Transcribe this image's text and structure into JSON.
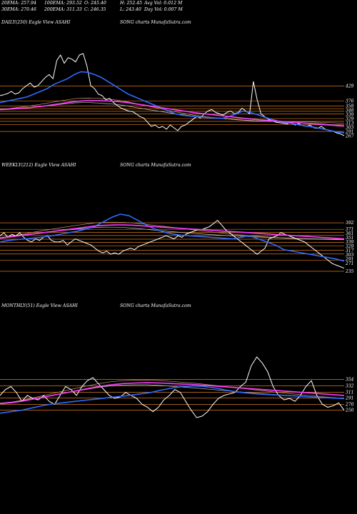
{
  "header": {
    "row1": [
      "20EMA: 257.94",
      "100EMA: 293.52",
      "O: 245.40",
      "H: 252.45",
      "Avg Vol: 0.012  M"
    ],
    "row2": [
      "30EMA: 270.46",
      "200EMA: 311.33",
      "C: 246.35",
      "L: 243.40",
      "Day Vol: 0.007  M"
    ]
  },
  "panels": [
    {
      "label": "DAILY(250) Eagle  View  ASAHI",
      "credit": "SONG charts MunafaSutra.com"
    },
    {
      "label": "WEEKLY(212) Eagle  View  ASAHI",
      "credit": "SONG charts MunafaSutra.com"
    },
    {
      "label": "MONTHLY(51) Eagle  View  ASAHI",
      "credit": "SONG charts MunafaSutra.com"
    }
  ],
  "colors": {
    "price": "#ffffff",
    "fast_ema": "#2f6bff",
    "slow_ema": "#ff3cff",
    "level": "#e07a1e",
    "ema_gray": "#c8c8c8",
    "ema_brown": "#c89a6a"
  },
  "chart_data": [
    {
      "type": "line",
      "name": "daily",
      "levels": [
        "429",
        "376",
        "358",
        "348",
        "339",
        "329",
        "313",
        "303",
        "291",
        "267"
      ],
      "series": [
        {
          "role": "price",
          "values": [
            395,
            398,
            402,
            410,
            400,
            405,
            420,
            430,
            440,
            425,
            430,
            445,
            460,
            470,
            455,
            520,
            540,
            510,
            530,
            525,
            515,
            540,
            545,
            500,
            430,
            420,
            400,
            395,
            380,
            385,
            370,
            360,
            350,
            345,
            340,
            338,
            330,
            320,
            315,
            300,
            285,
            290,
            280,
            285,
            275,
            290,
            280,
            270,
            285,
            290,
            300,
            310,
            320,
            315,
            330,
            340,
            345,
            335,
            330,
            325,
            335,
            340,
            330,
            335,
            350,
            340,
            330,
            445,
            380,
            330,
            320,
            310,
            305,
            300,
            298,
            296,
            294,
            300,
            290,
            295,
            288,
            285,
            290,
            280,
            278,
            285,
            275,
            270,
            268,
            262,
            258,
            252
          ]
        },
        {
          "role": "fast_ema",
          "values": [
            370,
            375,
            380,
            385,
            390,
            400,
            410,
            420,
            435,
            445,
            455,
            470,
            480,
            478,
            470,
            460,
            445,
            430,
            415,
            400,
            390,
            380,
            370,
            360,
            350,
            340,
            330,
            325,
            322,
            320,
            318,
            316,
            315,
            314,
            320,
            330,
            340,
            335,
            328,
            320,
            312,
            305,
            300,
            296,
            292,
            288,
            284,
            280,
            275,
            270,
            265,
            262
          ]
        },
        {
          "role": "slow_ema",
          "values": [
            345,
            346,
            348,
            350,
            352,
            355,
            358,
            362,
            366,
            370,
            374,
            376,
            377,
            377,
            376,
            375,
            373,
            370,
            366,
            362,
            358,
            354,
            350,
            346,
            342,
            338,
            334,
            331,
            328,
            325,
            322,
            319,
            316,
            313,
            310,
            308,
            306,
            304,
            302,
            300,
            298,
            296,
            294,
            292,
            290,
            288,
            286
          ]
        }
      ]
    },
    {
      "type": "line",
      "name": "weekly",
      "levels": [
        "392",
        "371",
        "361",
        "351",
        "339",
        "329",
        "317",
        "303",
        "291",
        "271",
        "235"
      ],
      "series": [
        {
          "role": "price",
          "values": [
            350,
            360,
            345,
            355,
            350,
            360,
            345,
            335,
            330,
            340,
            335,
            345,
            350,
            335,
            330,
            330,
            335,
            320,
            330,
            340,
            335,
            330,
            325,
            320,
            310,
            300,
            295,
            300,
            290,
            295,
            290,
            300,
            305,
            310,
            305,
            315,
            320,
            325,
            330,
            335,
            340,
            345,
            350,
            345,
            340,
            350,
            345,
            355,
            360,
            365,
            370,
            370,
            375,
            380,
            390,
            400,
            385,
            370,
            360,
            350,
            340,
            330,
            320,
            310,
            300,
            290,
            300,
            310,
            340,
            345,
            350,
            360,
            355,
            350,
            345,
            340,
            335,
            330,
            320,
            310,
            300,
            290,
            280,
            270,
            260,
            255,
            250,
            245
          ]
        },
        {
          "role": "fast_ema",
          "values": [
            330,
            335,
            338,
            340,
            343,
            346,
            350,
            355,
            360,
            365,
            372,
            380,
            395,
            410,
            420,
            415,
            400,
            385,
            372,
            362,
            356,
            352,
            350,
            348,
            346,
            344,
            342,
            340,
            345,
            350,
            340,
            330,
            320,
            305,
            300,
            295,
            290,
            285,
            280,
            275,
            268
          ]
        },
        {
          "role": "slow_ema",
          "values": [
            342,
            346,
            350,
            354,
            358,
            362,
            366,
            370,
            374,
            378,
            382,
            384,
            385,
            385,
            384,
            382,
            380,
            378,
            376,
            374,
            372,
            370,
            368,
            366,
            364,
            362,
            360,
            358,
            356,
            354,
            352,
            350,
            348,
            346,
            344,
            342,
            340
          ]
        }
      ]
    },
    {
      "type": "line",
      "name": "monthly",
      "levels": [
        "354",
        "332",
        "311",
        "291",
        "270",
        "250"
      ],
      "series": [
        {
          "role": "price",
          "values": [
            300,
            320,
            330,
            310,
            280,
            300,
            290,
            285,
            300,
            280,
            270,
            300,
            330,
            320,
            300,
            330,
            350,
            360,
            340,
            320,
            300,
            290,
            295,
            310,
            300,
            290,
            270,
            260,
            245,
            260,
            285,
            300,
            320,
            310,
            280,
            250,
            225,
            230,
            245,
            270,
            290,
            300,
            305,
            310,
            330,
            345,
            400,
            430,
            410,
            380,
            330,
            300,
            285,
            290,
            280,
            300,
            330,
            350,
            300,
            270,
            260,
            265,
            275,
            250
          ]
        },
        {
          "role": "fast_ema",
          "values": [
            240,
            245,
            250,
            258,
            266,
            272,
            276,
            280,
            284,
            288,
            292,
            296,
            300,
            305,
            310,
            318,
            325,
            330,
            332,
            330,
            325,
            318,
            312,
            308,
            305,
            303,
            301,
            299,
            297,
            295,
            293,
            291,
            290
          ]
        },
        {
          "role": "slow_ema",
          "values": [
            272,
            276,
            282,
            290,
            298,
            306,
            314,
            322,
            330,
            336,
            340,
            342,
            343,
            342,
            340,
            338,
            336,
            333,
            330,
            327,
            324,
            321,
            318,
            315,
            312,
            309,
            306,
            303,
            300
          ]
        }
      ]
    }
  ]
}
